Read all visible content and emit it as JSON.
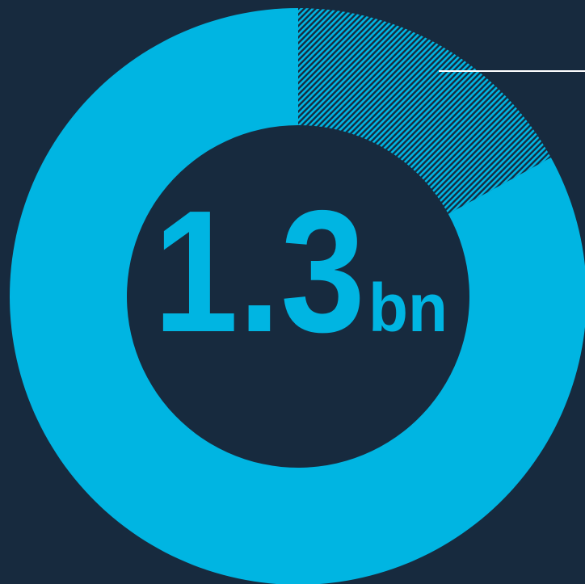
{
  "chart_data": {
    "type": "pie",
    "values": [
      17,
      83
    ],
    "colors": [
      "#00b5e2",
      "#00b5e2"
    ],
    "hatch": [
      true,
      false
    ],
    "center_value": "1.3",
    "center_unit": "bn"
  }
}
